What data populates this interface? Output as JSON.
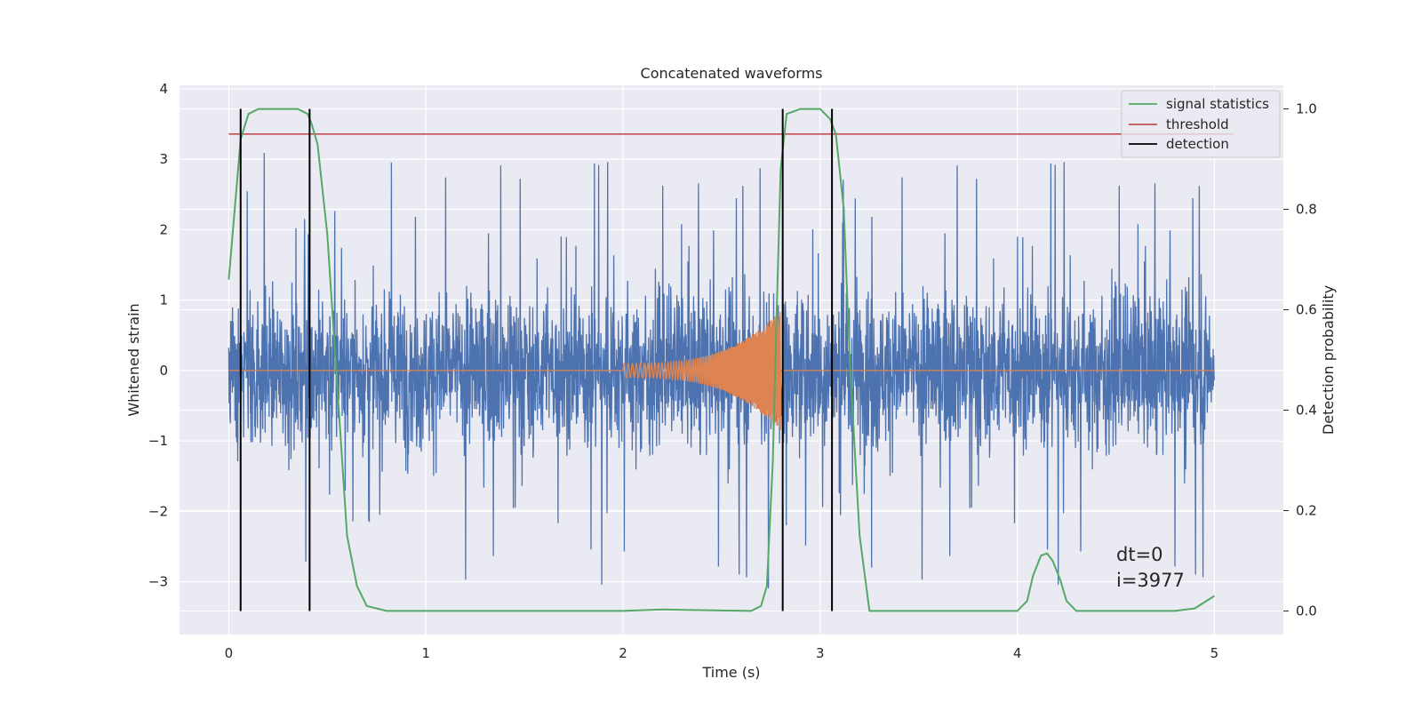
{
  "chart_data": {
    "type": "line",
    "title": "Concatenated waveforms",
    "xlabel": "Time (s)",
    "ylabel": "Whitened strain",
    "y2label": "Detection probability",
    "xlim": [
      -0.25,
      5.35
    ],
    "ylim": [
      -3.75,
      4.05
    ],
    "y2lim": [
      -0.047,
      1.047
    ],
    "xticks": [
      0,
      1,
      2,
      3,
      4,
      5
    ],
    "xtick_labels": [
      "0",
      "1",
      "2",
      "3",
      "4",
      "5"
    ],
    "yticks": [
      -3,
      -2,
      -1,
      0,
      1,
      2,
      3,
      4
    ],
    "ytick_labels": [
      "−3",
      "−2",
      "−1",
      "0",
      "1",
      "2",
      "3",
      "4"
    ],
    "y2ticks": [
      0.0,
      0.2,
      0.4,
      0.6,
      0.8,
      1.0
    ],
    "y2tick_labels": [
      "0.0",
      "0.2",
      "0.4",
      "0.6",
      "0.8",
      "1.0"
    ],
    "grid": true,
    "legend_position": "top-right",
    "legend": [
      {
        "label": "signal statistics",
        "color": "#55a868"
      },
      {
        "label": "threshold",
        "color": "#c44e52"
      },
      {
        "label": "detection",
        "color": "#000000"
      }
    ],
    "annotations": [
      "dt=0",
      "i=3977"
    ],
    "series": [
      {
        "kind": "noise",
        "axis": "left",
        "color": "#4c72b0",
        "x_range": [
          0,
          5
        ],
        "noise_std": 0.55,
        "peak_max": 3.3,
        "peak_min": -3.4
      },
      {
        "kind": "chirp",
        "axis": "left",
        "color": "#dd8452",
        "x_range": [
          2.0,
          2.8
        ],
        "amplitude_start": 0.1,
        "amplitude_end": 0.85
      },
      {
        "name": "signal statistics",
        "axis": "right",
        "color": "#55a868",
        "x": [
          0.0,
          0.03,
          0.06,
          0.1,
          0.15,
          0.25,
          0.35,
          0.4,
          0.42,
          0.45,
          0.5,
          0.55,
          0.6,
          0.65,
          0.7,
          0.8,
          1.0,
          1.5,
          2.0,
          2.2,
          2.5,
          2.65,
          2.7,
          2.73,
          2.76,
          2.78,
          2.8,
          2.83,
          2.9,
          3.0,
          3.05,
          3.08,
          3.12,
          3.15,
          3.2,
          3.25,
          3.5,
          4.0,
          4.05,
          4.08,
          4.12,
          4.15,
          4.18,
          4.22,
          4.25,
          4.3,
          4.5,
          4.8,
          4.9,
          5.0
        ],
        "y": [
          0.66,
          0.8,
          0.94,
          0.99,
          1.0,
          1.0,
          1.0,
          0.99,
          0.97,
          0.93,
          0.75,
          0.45,
          0.15,
          0.05,
          0.01,
          0.0,
          0.0,
          0.0,
          0.0,
          0.003,
          0.001,
          0.0,
          0.01,
          0.05,
          0.3,
          0.6,
          0.88,
          0.99,
          1.0,
          1.0,
          0.98,
          0.95,
          0.8,
          0.5,
          0.15,
          0.0,
          0.0,
          0.0,
          0.02,
          0.07,
          0.11,
          0.115,
          0.1,
          0.06,
          0.02,
          0.0,
          0.0,
          0.0,
          0.005,
          0.03
        ]
      },
      {
        "name": "threshold",
        "axis": "right",
        "color": "#c44e52",
        "x": [
          0.0,
          5.1
        ],
        "y": [
          0.95,
          0.95
        ]
      }
    ],
    "detections": [
      0.06,
      0.41,
      2.81,
      3.06
    ],
    "detection_span": [
      0.0,
      1.0
    ],
    "colors": {
      "plot_background": "#eaeaf2",
      "grid": "#ffffff",
      "noise": "#4c72b0",
      "chirp": "#dd8452",
      "statistics": "#55a868",
      "threshold": "#c44e52",
      "detection": "#000000"
    }
  }
}
